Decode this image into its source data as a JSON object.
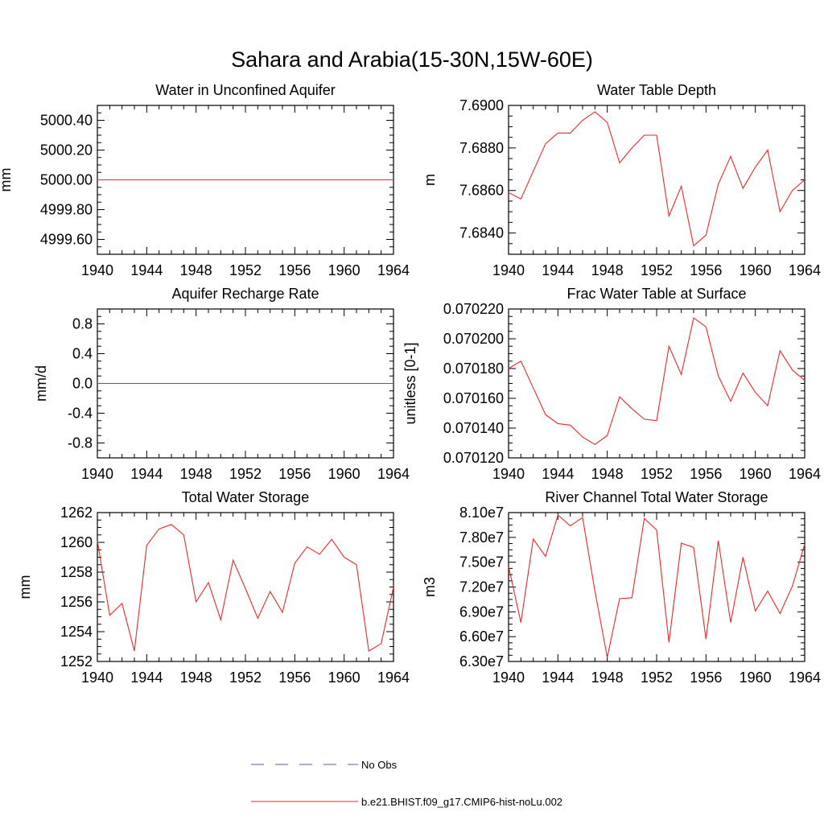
{
  "figure": {
    "title": "Sahara and Arabia(15-30N,15W-60E)"
  },
  "legend": {
    "entries": [
      {
        "label": "No Obs",
        "style": "dashed",
        "color": "#5a5aa8"
      },
      {
        "label": "b.e21.BHIST.f09_g17.CMIP6-hist-noLu.002",
        "style": "solid",
        "color": "#e8282b"
      }
    ]
  },
  "chart_data": [
    {
      "type": "line",
      "title": "Water in Unconfined Aquifer",
      "ylabel": "mm",
      "xlim": [
        1940,
        1964
      ],
      "ylim": [
        4999.5,
        5000.5
      ],
      "xticks": [
        1940,
        1944,
        1948,
        1952,
        1956,
        1960,
        1964
      ],
      "yticks": [
        4999.6,
        4999.8,
        5000.0,
        5000.2,
        5000.4
      ],
      "ytick_labels": [
        "4999.60",
        "4999.80",
        "5000.00",
        "5000.20",
        "5000.40"
      ],
      "series": [
        {
          "color": "#e8282b",
          "x": [
            1940,
            1964
          ],
          "y": [
            5000.0,
            5000.0
          ]
        }
      ]
    },
    {
      "type": "line",
      "title": "Water Table Depth",
      "ylabel": "m",
      "xlim": [
        1940,
        1964
      ],
      "ylim": [
        7.683,
        7.69
      ],
      "xticks": [
        1940,
        1944,
        1948,
        1952,
        1956,
        1960,
        1964
      ],
      "yticks": [
        7.684,
        7.686,
        7.688,
        7.69
      ],
      "ytick_labels": [
        "7.6840",
        "7.6860",
        "7.6880",
        "7.6900"
      ],
      "series": [
        {
          "color": "#e8282b",
          "x": [
            1940,
            1941,
            1942,
            1943,
            1944,
            1945,
            1946,
            1947,
            1948,
            1949,
            1950,
            1951,
            1952,
            1953,
            1954,
            1955,
            1956,
            1957,
            1958,
            1959,
            1960,
            1961,
            1962,
            1963,
            1964
          ],
          "y": [
            7.6859,
            7.6856,
            7.6869,
            7.6882,
            7.6887,
            7.6887,
            7.6893,
            7.6897,
            7.6892,
            7.6873,
            7.688,
            7.6886,
            7.6886,
            7.6848,
            7.6862,
            7.6834,
            7.6839,
            7.6863,
            7.6876,
            7.6861,
            7.6871,
            7.6879,
            7.685,
            7.686,
            7.6865
          ]
        }
      ]
    },
    {
      "type": "line",
      "title": "Aquifer Recharge Rate",
      "ylabel": "mm/d",
      "xlim": [
        1940,
        1964
      ],
      "ylim": [
        -1.0,
        1.0
      ],
      "xticks": [
        1940,
        1944,
        1948,
        1952,
        1956,
        1960,
        1964
      ],
      "yticks": [
        -0.8,
        -0.4,
        0.0,
        0.4,
        0.8
      ],
      "ytick_labels": [
        "-0.8",
        "-0.4",
        "0.0",
        "0.4",
        "0.8"
      ],
      "series": [
        {
          "color": "#e8282b",
          "x": [
            1940,
            1964
          ],
          "y": [
            0.0,
            0.0
          ]
        }
      ]
    },
    {
      "type": "line",
      "title": "Frac Water Table at Surface",
      "ylabel": "unitless [0-1]",
      "xlim": [
        1940,
        1964
      ],
      "ylim": [
        0.07012,
        0.07022
      ],
      "xticks": [
        1940,
        1944,
        1948,
        1952,
        1956,
        1960,
        1964
      ],
      "yticks": [
        0.07012,
        0.07014,
        0.07016,
        0.07018,
        0.0702,
        0.07022
      ],
      "ytick_labels": [
        "0.070120",
        "0.070140",
        "0.070160",
        "0.070180",
        "0.070200",
        "0.070220"
      ],
      "series": [
        {
          "color": "#e8282b",
          "x": [
            1940,
            1941,
            1942,
            1943,
            1944,
            1945,
            1946,
            1947,
            1948,
            1949,
            1950,
            1951,
            1952,
            1953,
            1954,
            1955,
            1956,
            1957,
            1958,
            1959,
            1960,
            1961,
            1962,
            1963,
            1964
          ],
          "y": [
            0.07018,
            0.070185,
            0.070167,
            0.070149,
            0.070143,
            0.070142,
            0.070134,
            0.070129,
            0.070135,
            0.070161,
            0.070153,
            0.070146,
            0.070145,
            0.070195,
            0.070176,
            0.070214,
            0.070208,
            0.070175,
            0.070158,
            0.070177,
            0.070164,
            0.070155,
            0.070192,
            0.070179,
            0.070172
          ]
        }
      ]
    },
    {
      "type": "line",
      "title": "Total Water Storage",
      "ylabel": "mm",
      "xlim": [
        1940,
        1964
      ],
      "ylim": [
        1252,
        1262
      ],
      "xticks": [
        1940,
        1944,
        1948,
        1952,
        1956,
        1960,
        1964
      ],
      "yticks": [
        1252,
        1254,
        1256,
        1258,
        1260,
        1262
      ],
      "ytick_labels": [
        "1252",
        "1254",
        "1256",
        "1258",
        "1260",
        "1262"
      ],
      "series": [
        {
          "color": "#e8282b",
          "x": [
            1940,
            1941,
            1942,
            1943,
            1944,
            1945,
            1946,
            1947,
            1948,
            1949,
            1950,
            1951,
            1952,
            1953,
            1954,
            1955,
            1956,
            1957,
            1958,
            1959,
            1960,
            1961,
            1962,
            1963,
            1964
          ],
          "y": [
            1260.1,
            1255.1,
            1255.9,
            1252.7,
            1259.8,
            1260.9,
            1261.2,
            1260.5,
            1256.0,
            1257.3,
            1254.8,
            1258.8,
            1256.9,
            1254.9,
            1256.7,
            1255.3,
            1258.6,
            1259.7,
            1259.2,
            1260.2,
            1259.0,
            1258.5,
            1252.7,
            1253.2,
            1257.0
          ]
        }
      ]
    },
    {
      "type": "line",
      "title": "River Channel Total Water Storage",
      "ylabel": "m3",
      "xlim": [
        1940,
        1964
      ],
      "ylim": [
        63000000.0,
        81000000.0
      ],
      "xticks": [
        1940,
        1944,
        1948,
        1952,
        1956,
        1960,
        1964
      ],
      "yticks": [
        63000000.0,
        66000000.0,
        69000000.0,
        72000000.0,
        75000000.0,
        78000000.0,
        81000000.0
      ],
      "ytick_labels": [
        "6.30e7",
        "6.60e7",
        "6.90e7",
        "7.20e7",
        "7.50e7",
        "7.80e7",
        "8.10e7"
      ],
      "series": [
        {
          "color": "#e8282b",
          "x": [
            1940,
            1941,
            1942,
            1943,
            1944,
            1945,
            1946,
            1947,
            1948,
            1949,
            1950,
            1951,
            1952,
            1953,
            1954,
            1955,
            1956,
            1957,
            1958,
            1959,
            1960,
            1961,
            1962,
            1963,
            1964
          ],
          "y": [
            74500000.0,
            67700000.0,
            77800000.0,
            75700000.0,
            80700000.0,
            79400000.0,
            80400000.0,
            71500000.0,
            63500000.0,
            70600000.0,
            70700000.0,
            80300000.0,
            78900000.0,
            65300000.0,
            77300000.0,
            76800000.0,
            65700000.0,
            77600000.0,
            67700000.0,
            75600000.0,
            69100000.0,
            71500000.0,
            68800000.0,
            72100000.0,
            77200000.0
          ]
        }
      ]
    }
  ]
}
